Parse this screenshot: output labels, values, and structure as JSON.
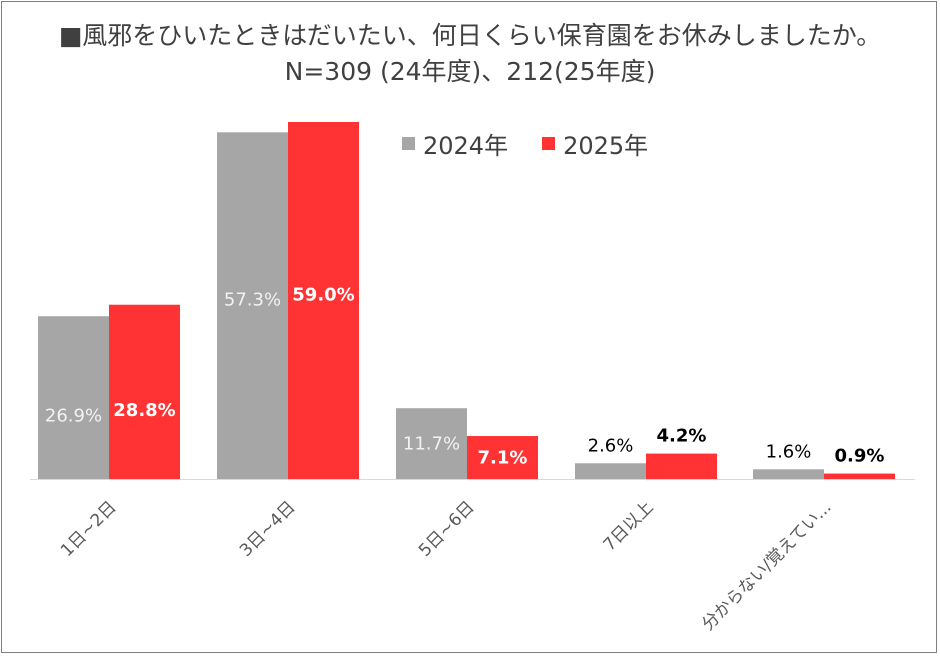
{
  "title": "■風邪をひいたときはだいたい、何日くらい保育園をお休みしましたか。",
  "subtitle": "N=309 (24年度)、212(25年度)",
  "colors": {
    "s2024": "#a6a6a6",
    "s2025": "#ff3333"
  },
  "chart_data": {
    "type": "bar",
    "categories": [
      "1日~2日",
      "3日~4日",
      "5日~6日",
      "7日以上",
      "分からない/覚えてい..."
    ],
    "series": [
      {
        "name": "2024年",
        "values": [
          26.9,
          57.3,
          11.7,
          2.6,
          1.6
        ],
        "labels": [
          "26.9%",
          "57.3%",
          "11.7%",
          "2.6%",
          "1.6%"
        ]
      },
      {
        "name": "2025年",
        "values": [
          28.8,
          59.0,
          7.1,
          4.2,
          0.9
        ],
        "labels": [
          "28.8%",
          "59.0%",
          "7.1%",
          "4.2%",
          "0.9%"
        ]
      }
    ],
    "ylim": [
      0,
      59.0
    ],
    "legend": "top-right",
    "grid": false
  }
}
